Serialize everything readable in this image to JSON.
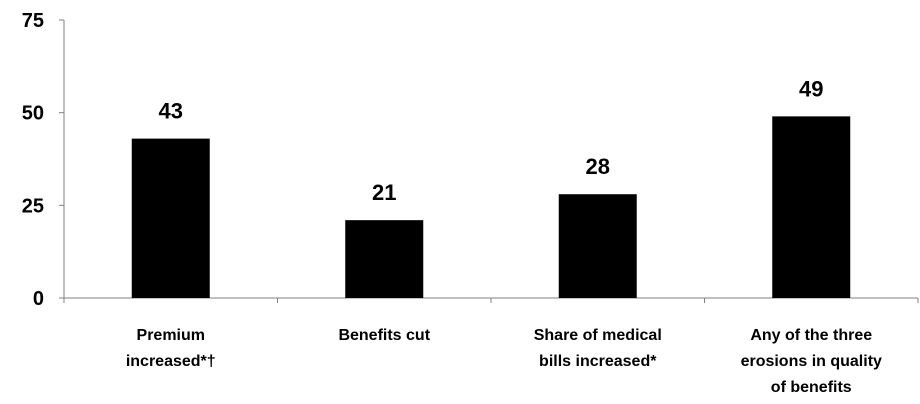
{
  "chart_data": {
    "type": "bar",
    "categories": [
      [
        "Premium",
        "increased*†"
      ],
      [
        "Benefits cut"
      ],
      [
        "Share of medical",
        "bills increased*"
      ],
      [
        "Any of the three",
        "erosions in quality",
        "of benefits"
      ]
    ],
    "values": [
      43,
      21,
      28,
      49
    ],
    "value_labels": [
      "43",
      "21",
      "28",
      "49"
    ],
    "y_ticks": [
      0,
      25,
      50,
      75
    ],
    "y_tick_labels": [
      "0",
      "25",
      "50",
      "75"
    ],
    "ylim": [
      0,
      75
    ],
    "title": "",
    "xlabel": "",
    "ylabel": "",
    "grid": false,
    "colors": {
      "bar": "#000000",
      "axis": "#808080"
    }
  }
}
